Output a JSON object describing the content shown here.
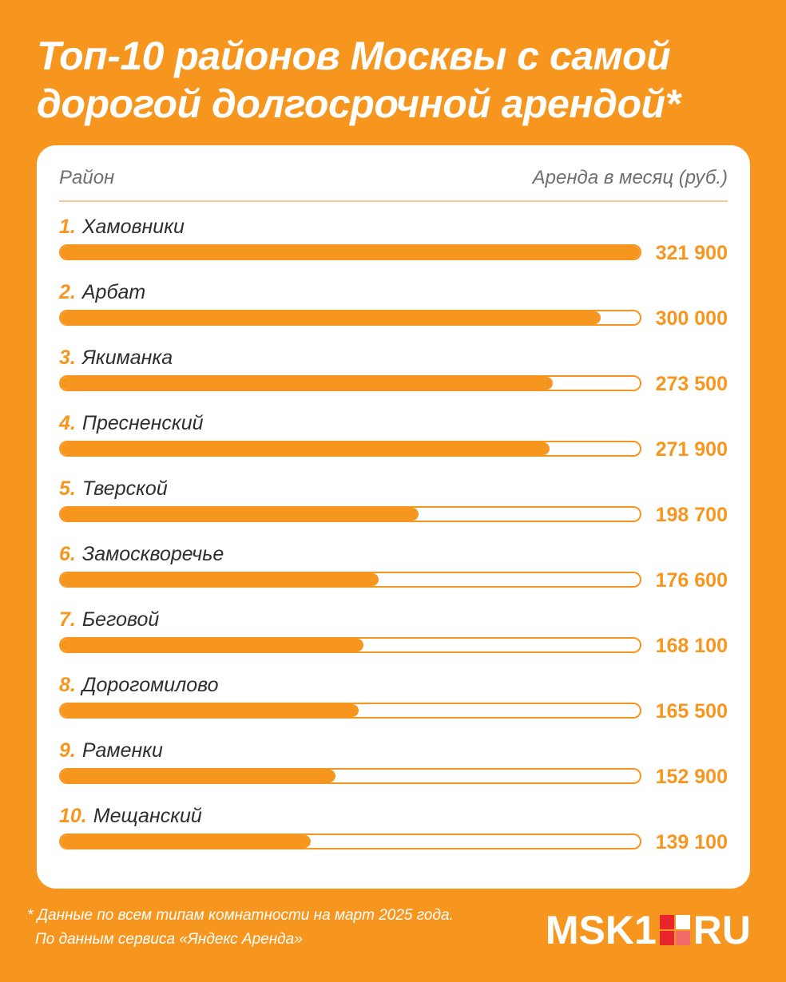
{
  "title_line1": "Топ-10 районов Москвы с самой",
  "title_line2": "дорогой долгосрочной арендой*",
  "col_left": "Район",
  "col_right": "Аренда в месяц (руб.)",
  "footnote_line1": "* Данные по всем типам комнатности на март 2025 года.",
  "footnote_line2": "По данным сервиса «Яндекс Аренда»",
  "logo": {
    "left": "MSK1",
    "right": "RU"
  },
  "colors": {
    "accent": "#F7961E",
    "logo_red": "#E8262B",
    "logo_pink": "#F26C6C"
  },
  "chart_data": {
    "type": "bar",
    "orientation": "horizontal",
    "categories": [
      "Хамовники",
      "Арбат",
      "Якиманка",
      "Пресненский",
      "Тверской",
      "Замоскворечье",
      "Беговой",
      "Дорогомилово",
      "Раменки",
      "Мещанский"
    ],
    "ranks": [
      "1.",
      "2.",
      "3.",
      "4.",
      "5.",
      "6.",
      "7.",
      "8.",
      "9.",
      "10."
    ],
    "values": [
      321900,
      300000,
      273500,
      271900,
      198700,
      176600,
      168100,
      165500,
      152900,
      139100
    ],
    "value_labels": [
      "321 900",
      "300 000",
      "273 500",
      "271 900",
      "198 700",
      "176 600",
      "168 100",
      "165 500",
      "152 900",
      "139 100"
    ],
    "xlim": [
      0,
      321900
    ]
  }
}
